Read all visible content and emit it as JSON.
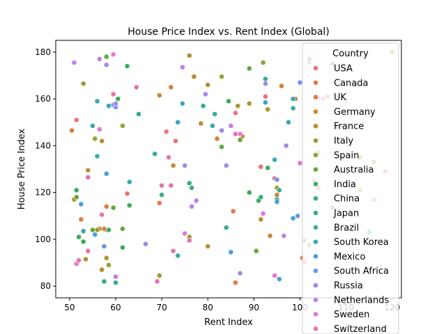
{
  "chart_data": {
    "type": "scatter",
    "title": "House Price Index vs. Rent Index (Global)",
    "xlabel": "Rent Index",
    "ylabel": "House Price Index",
    "xlim": [
      47,
      122
    ],
    "ylim": [
      75,
      185
    ],
    "xticks": [
      "50",
      "60",
      "70",
      "80",
      "90",
      "100",
      "110",
      "120"
    ],
    "yticks": [
      "80",
      "100",
      "120",
      "140",
      "160",
      "180"
    ],
    "xtick_values": [
      50,
      60,
      70,
      80,
      90,
      100,
      110,
      120
    ],
    "ytick_values": [
      80,
      100,
      120,
      140,
      160,
      180
    ],
    "grid": false,
    "legend": {
      "title": "Country",
      "placement": "right",
      "entries": [
        "USA",
        "Canada",
        "UK",
        "Germany",
        "France",
        "Italy",
        "Spain",
        "Australia",
        "India",
        "China",
        "Japan",
        "Brazil",
        "South Korea",
        "Mexico",
        "South Africa",
        "Russia",
        "Netherlands",
        "Sweden",
        "Switzerland"
      ]
    },
    "series": [
      {
        "name": "USA",
        "color": "#e8747c",
        "points": [
          [
            51.5,
            151
          ],
          [
            62.5,
            119.5
          ],
          [
            71,
            146
          ],
          [
            73,
            142
          ],
          [
            86,
            154
          ],
          [
            91.5,
            131
          ],
          [
            92.5,
            161
          ],
          [
            94.5,
            126
          ],
          [
            103.5,
            123
          ],
          [
            116,
            117
          ],
          [
            118.5,
            129
          ]
        ]
      },
      {
        "name": "Canada",
        "color": "#e37a4a",
        "points": [
          [
            52.5,
            108.5
          ],
          [
            58,
            104
          ],
          [
            69.5,
            115.5
          ],
          [
            85.5,
            112
          ],
          [
            86,
            81.5
          ],
          [
            100.5,
            92
          ],
          [
            104,
            122
          ]
        ]
      },
      {
        "name": "UK",
        "color": "#d4813a",
        "points": [
          [
            50.5,
            146.5
          ],
          [
            57.5,
            104.5
          ],
          [
            58,
            114
          ],
          [
            72,
            165
          ],
          [
            82,
            143
          ],
          [
            87.5,
            144
          ],
          [
            96,
            165.5
          ],
          [
            101,
            99.5
          ],
          [
            102,
            175.5
          ]
        ]
      },
      {
        "name": "Germany",
        "color": "#c48a3a",
        "points": [
          [
            51,
            117
          ],
          [
            54,
            129.5
          ],
          [
            56.5,
            104.5
          ],
          [
            69.5,
            161.5
          ],
          [
            72.5,
            131.5
          ],
          [
            78.5,
            149.5
          ],
          [
            80,
            97
          ],
          [
            93.5,
            101.5
          ],
          [
            95,
            119
          ],
          [
            106,
            161
          ]
        ]
      },
      {
        "name": "France",
        "color": "#b58f34",
        "points": [
          [
            53.5,
            91.5
          ],
          [
            57,
            87
          ],
          [
            57,
            142
          ],
          [
            76,
            178.5
          ],
          [
            77,
            169.5
          ],
          [
            80,
            166
          ],
          [
            91.5,
            108.5
          ],
          [
            99,
            160
          ],
          [
            107,
            175
          ]
        ]
      },
      {
        "name": "Italy",
        "color": "#a79734",
        "points": [
          [
            53,
            166.5
          ],
          [
            56,
            104
          ],
          [
            58,
            92
          ],
          [
            69.5,
            84.5
          ],
          [
            86.5,
            157
          ],
          [
            89,
            158
          ],
          [
            93,
            155.5
          ],
          [
            108,
            148
          ],
          [
            113,
            135
          ],
          [
            116,
            133
          ]
        ]
      },
      {
        "name": "Spain",
        "color": "#97a035",
        "points": [
          [
            55.5,
            143
          ],
          [
            58.5,
            89
          ],
          [
            61.5,
            148.5
          ],
          [
            76,
            101
          ],
          [
            83,
            169.5
          ],
          [
            92,
            175.5
          ],
          [
            95,
            122
          ],
          [
            102,
            97.5
          ],
          [
            113,
            121
          ],
          [
            120,
            180
          ]
        ]
      },
      {
        "name": "Australia",
        "color": "#62a93a",
        "points": [
          [
            51.5,
            118
          ],
          [
            55,
            104
          ],
          [
            58,
            178
          ],
          [
            59.5,
            113.5
          ],
          [
            61.5,
            104.5
          ],
          [
            83,
            139.5
          ],
          [
            87,
            142.5
          ],
          [
            89,
            173
          ],
          [
            90.5,
            95
          ],
          [
            95,
            116.5
          ]
        ]
      },
      {
        "name": "India",
        "color": "#3aac58",
        "points": [
          [
            51.5,
            121
          ],
          [
            52,
            101
          ],
          [
            53,
            99
          ],
          [
            60.5,
            160
          ],
          [
            62.5,
            174
          ],
          [
            63,
            114.5
          ],
          [
            61.5,
            96.5
          ],
          [
            84.5,
            159
          ],
          [
            89,
            120
          ],
          [
            91,
            116.5
          ],
          [
            93,
            130.5
          ]
        ]
      },
      {
        "name": "China",
        "color": "#37ad7c",
        "points": [
          [
            57.5,
            82
          ],
          [
            58.5,
            104
          ],
          [
            76,
            124
          ],
          [
            76.5,
            122
          ],
          [
            91.5,
            118
          ],
          [
            95,
            117
          ],
          [
            104,
            137
          ],
          [
            107,
            113.5
          ]
        ]
      },
      {
        "name": "Japan",
        "color": "#38ab93",
        "points": [
          [
            53,
            103.5
          ],
          [
            60,
            81.5
          ],
          [
            65,
            153.5
          ],
          [
            70,
            119
          ],
          [
            81.5,
            153.5
          ],
          [
            84,
            105
          ],
          [
            92.5,
            168.5
          ],
          [
            95.5,
            121
          ]
        ]
      },
      {
        "name": "Brazil",
        "color": "#39aaa6",
        "points": [
          [
            56,
            159
          ],
          [
            63,
            124.5
          ],
          [
            68.5,
            136.5
          ],
          [
            73.5,
            93
          ],
          [
            79,
            157
          ],
          [
            94.5,
            134
          ],
          [
            98.5,
            156
          ],
          [
            102,
            177
          ],
          [
            112,
            166
          ],
          [
            115,
            103
          ]
        ]
      },
      {
        "name": "South Korea",
        "color": "#3aa7ba",
        "points": [
          [
            55,
            148.5
          ],
          [
            56,
            135.5
          ],
          [
            58.5,
            157
          ],
          [
            73.5,
            150
          ],
          [
            74.5,
            158
          ],
          [
            81,
            148.5
          ],
          [
            92.5,
            158.5
          ],
          [
            97.5,
            150
          ],
          [
            98.5,
            160
          ]
        ]
      },
      {
        "name": "Mexico",
        "color": "#4aa0d6",
        "points": [
          [
            52.5,
            115
          ],
          [
            55.5,
            102
          ],
          [
            58,
            128
          ],
          [
            85,
            94.5
          ],
          [
            95,
            116
          ],
          [
            95.5,
            83
          ],
          [
            98.5,
            109
          ]
        ]
      },
      {
        "name": "South Africa",
        "color": "#7394e5",
        "points": [
          [
            57.5,
            97
          ],
          [
            59.5,
            157.5
          ],
          [
            60,
            156.5
          ],
          [
            95,
            125.5
          ],
          [
            99.5,
            110
          ],
          [
            100,
            167
          ]
        ]
      },
      {
        "name": "Russia",
        "color": "#a388e6",
        "points": [
          [
            58,
            174.5
          ],
          [
            60,
            158
          ],
          [
            66.5,
            98
          ],
          [
            75,
            131.5
          ],
          [
            79.5,
            162
          ],
          [
            83,
            146.5
          ],
          [
            84,
            131.5
          ],
          [
            87,
            85.5
          ],
          [
            92.5,
            166.5
          ],
          [
            97,
            140
          ],
          [
            104,
            160.5
          ]
        ]
      },
      {
        "name": "Netherlands",
        "color": "#bf80e4",
        "points": [
          [
            51,
            175.5
          ],
          [
            56.5,
            177
          ],
          [
            60,
            84
          ],
          [
            74.5,
            173.5
          ],
          [
            76.5,
            114
          ],
          [
            77.5,
            116.5
          ],
          [
            85,
            148.5
          ],
          [
            96.5,
            101.5
          ],
          [
            105,
            160.5
          ]
        ]
      },
      {
        "name": "Sweden",
        "color": "#e279d4",
        "points": [
          [
            51.5,
            89.5
          ],
          [
            56.5,
            147
          ],
          [
            59.5,
            179
          ],
          [
            75,
            102.5
          ],
          [
            87,
            145
          ],
          [
            92,
            111
          ],
          [
            94.5,
            84.5
          ],
          [
            100,
            132.5
          ]
        ]
      },
      {
        "name": "Switzerland",
        "color": "#e475ab",
        "points": [
          [
            52,
            91
          ],
          [
            54,
            95
          ],
          [
            54,
            126.5
          ],
          [
            57,
            110.5
          ],
          [
            59.5,
            162
          ],
          [
            64.5,
            165
          ],
          [
            69,
            82
          ],
          [
            70,
            123
          ],
          [
            71.5,
            135
          ],
          [
            72,
            123
          ],
          [
            72.5,
            95
          ],
          [
            76,
            99.5
          ],
          [
            86,
            145
          ],
          [
            101,
            90.5
          ],
          [
            103,
            125
          ],
          [
            105,
            160
          ]
        ]
      }
    ]
  }
}
